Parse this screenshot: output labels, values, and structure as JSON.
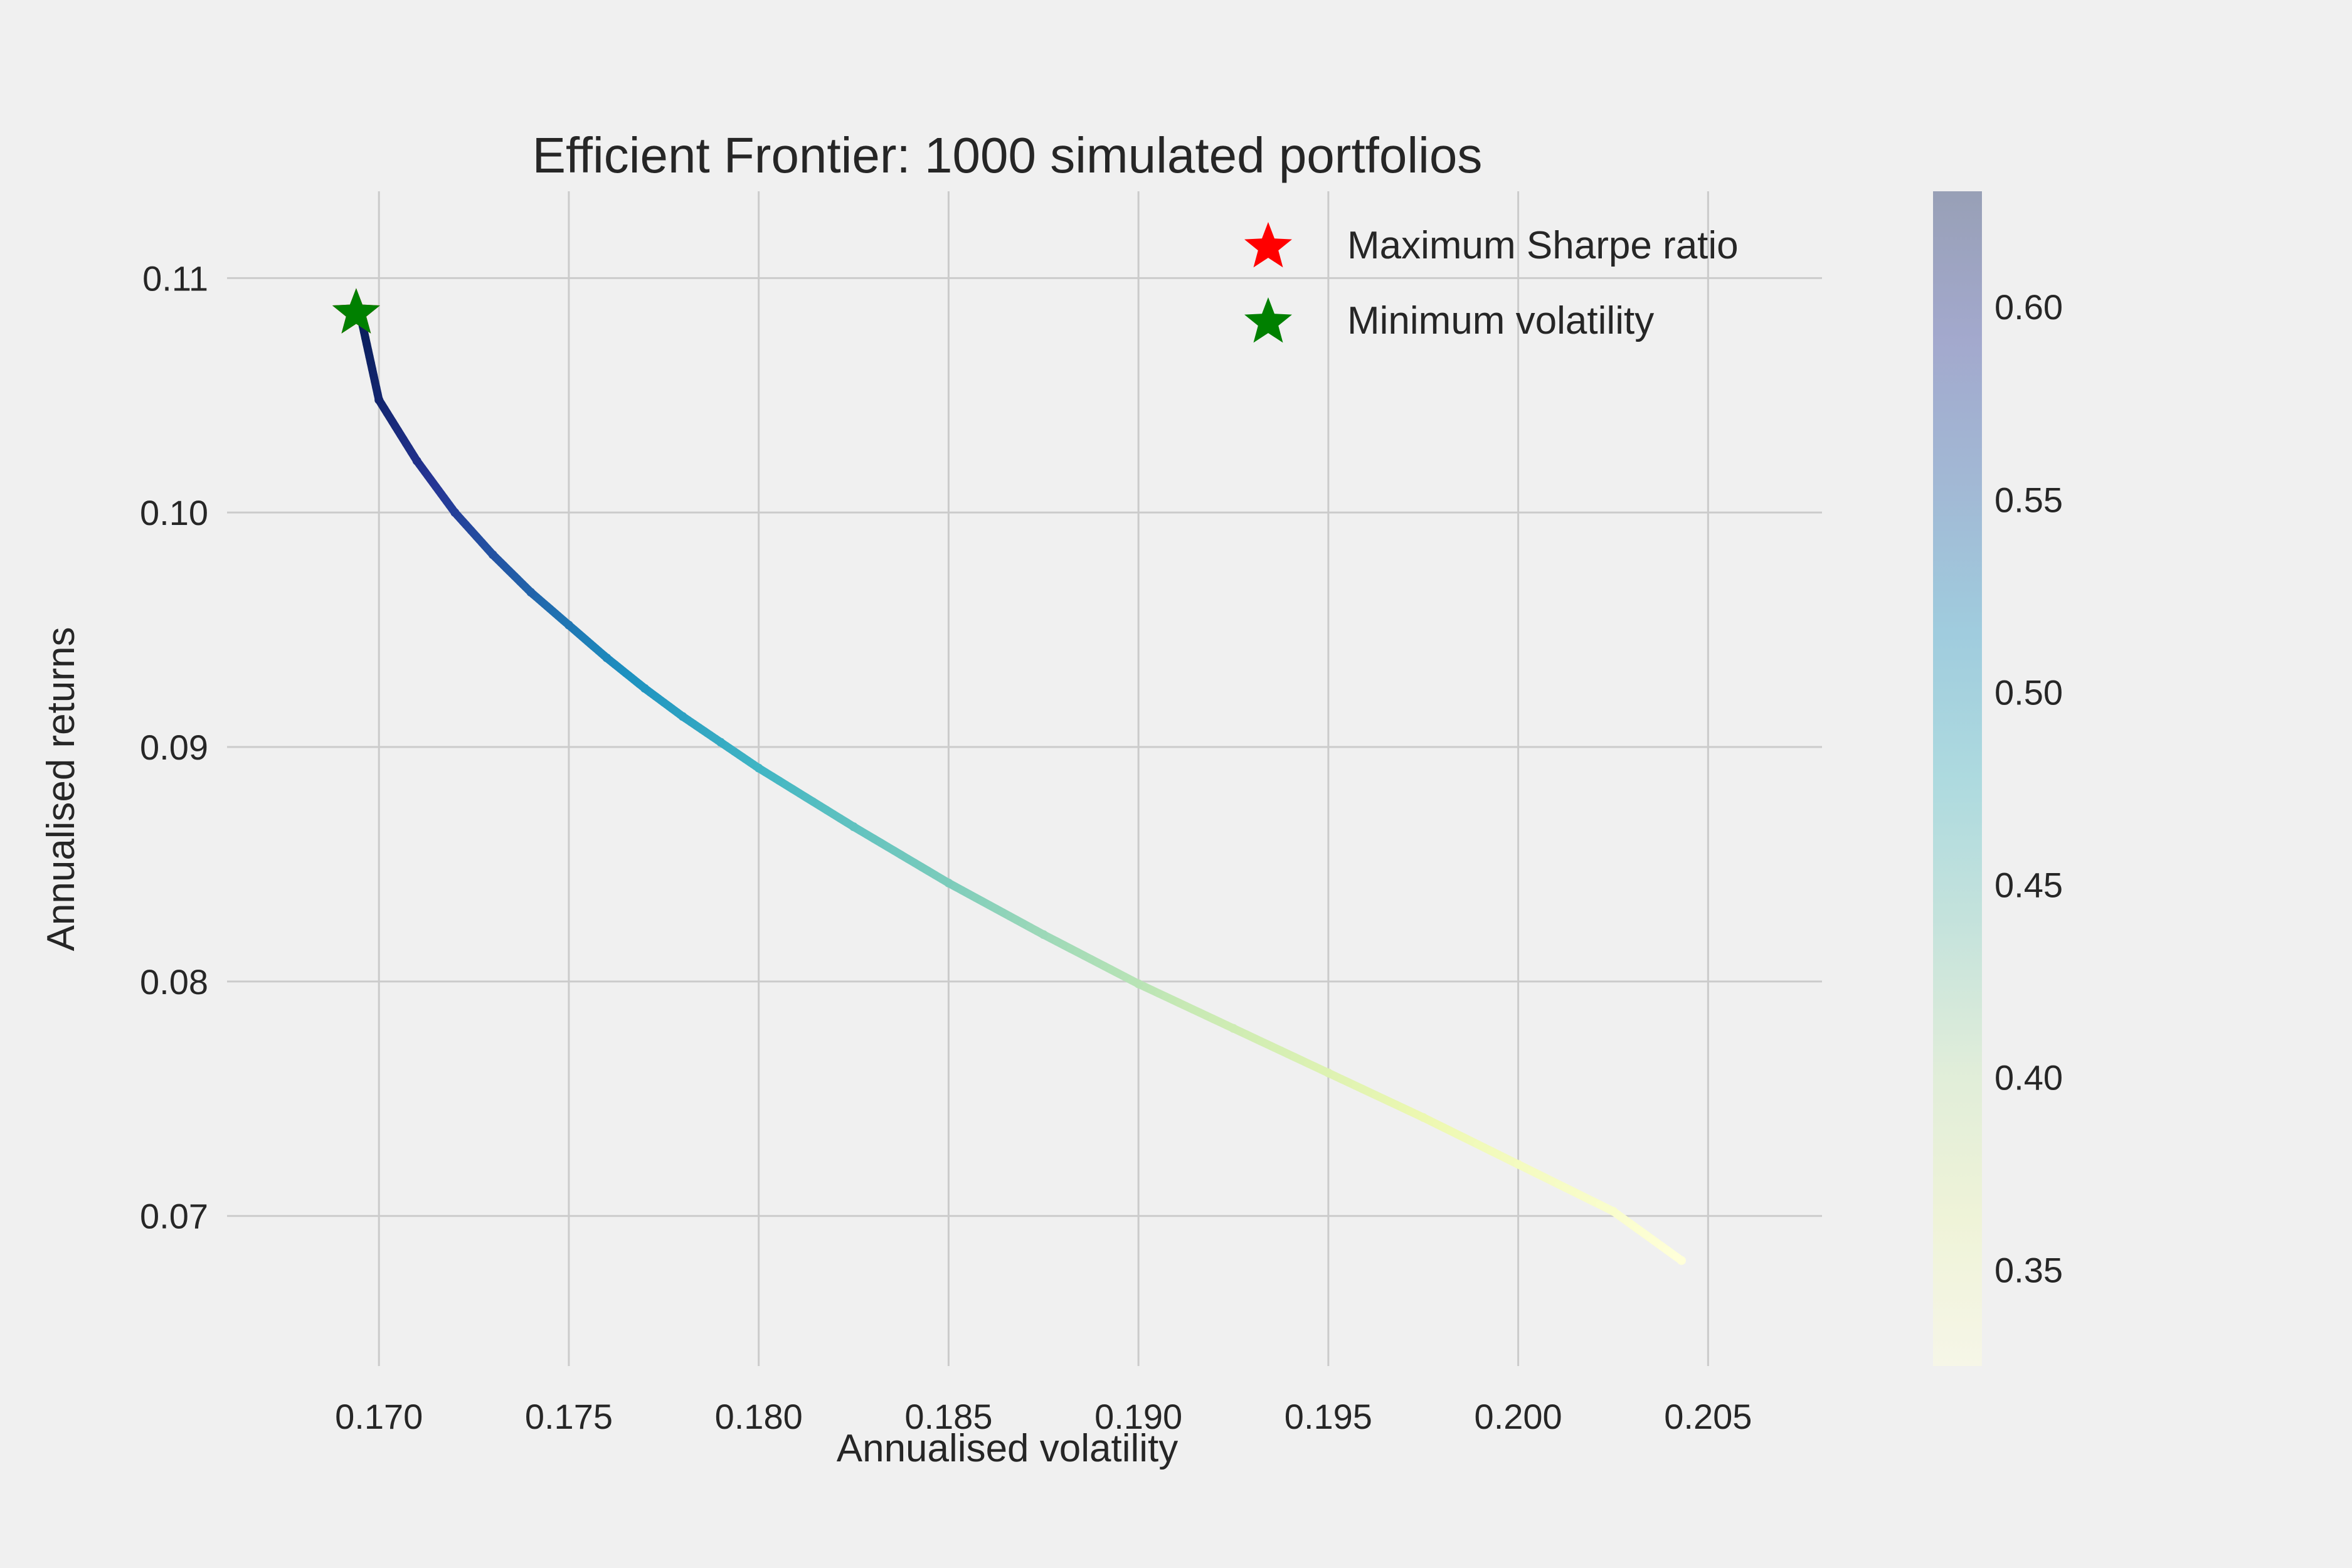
{
  "chart_data": {
    "type": "scatter",
    "title": "Efficient Frontier: 1000 simulated portfolios",
    "xlabel": "Annualised volatility",
    "ylabel": "Annualised returns",
    "xlim": [
      0.166,
      0.208
    ],
    "ylim": [
      0.0636,
      0.1137
    ],
    "xticks": [
      "0.170",
      "0.175",
      "0.180",
      "0.185",
      "0.190",
      "0.195",
      "0.200",
      "0.205"
    ],
    "yticks": [
      "0.07",
      "0.08",
      "0.09",
      "0.10",
      "0.11"
    ],
    "grid": true,
    "legend_position": "top-right",
    "legend": [
      {
        "label": "Maximum Sharpe ratio",
        "marker": "star",
        "color": "#ff0000"
      },
      {
        "label": "Minimum volatility",
        "marker": "star",
        "color": "#008000"
      }
    ],
    "colorbar": {
      "colormap": "YlGnBu",
      "range": [
        0.325,
        0.63
      ],
      "ticks": [
        "0.35",
        "0.40",
        "0.45",
        "0.50",
        "0.55",
        "0.60"
      ]
    },
    "frontier_points": [
      {
        "x": 0.1695,
        "y": 0.1085,
        "c": 0.63
      },
      {
        "x": 0.17,
        "y": 0.1048,
        "c": 0.616
      },
      {
        "x": 0.171,
        "y": 0.1022,
        "c": 0.599
      },
      {
        "x": 0.172,
        "y": 0.1,
        "c": 0.582
      },
      {
        "x": 0.173,
        "y": 0.0982,
        "c": 0.565
      },
      {
        "x": 0.174,
        "y": 0.0966,
        "c": 0.55
      },
      {
        "x": 0.175,
        "y": 0.0952,
        "c": 0.536
      },
      {
        "x": 0.176,
        "y": 0.0938,
        "c": 0.523
      },
      {
        "x": 0.177,
        "y": 0.0925,
        "c": 0.511
      },
      {
        "x": 0.178,
        "y": 0.0913,
        "c": 0.5
      },
      {
        "x": 0.179,
        "y": 0.0902,
        "c": 0.489
      },
      {
        "x": 0.18,
        "y": 0.0891,
        "c": 0.479
      },
      {
        "x": 0.1825,
        "y": 0.0866,
        "c": 0.458
      },
      {
        "x": 0.185,
        "y": 0.0842,
        "c": 0.441
      },
      {
        "x": 0.1875,
        "y": 0.082,
        "c": 0.424
      },
      {
        "x": 0.19,
        "y": 0.0799,
        "c": 0.409
      },
      {
        "x": 0.1925,
        "y": 0.078,
        "c": 0.394
      },
      {
        "x": 0.195,
        "y": 0.0761,
        "c": 0.379
      },
      {
        "x": 0.1975,
        "y": 0.0742,
        "c": 0.364
      },
      {
        "x": 0.2,
        "y": 0.0722,
        "c": 0.349
      },
      {
        "x": 0.2025,
        "y": 0.0702,
        "c": 0.337
      },
      {
        "x": 0.2043,
        "y": 0.0681,
        "c": 0.325
      }
    ],
    "markers": [
      {
        "name": "Maximum Sharpe ratio",
        "x": 0.1694,
        "y": 0.1085,
        "color": "#ff0000"
      },
      {
        "name": "Minimum volatility",
        "x": 0.1694,
        "y": 0.1085,
        "color": "#008000"
      }
    ]
  }
}
